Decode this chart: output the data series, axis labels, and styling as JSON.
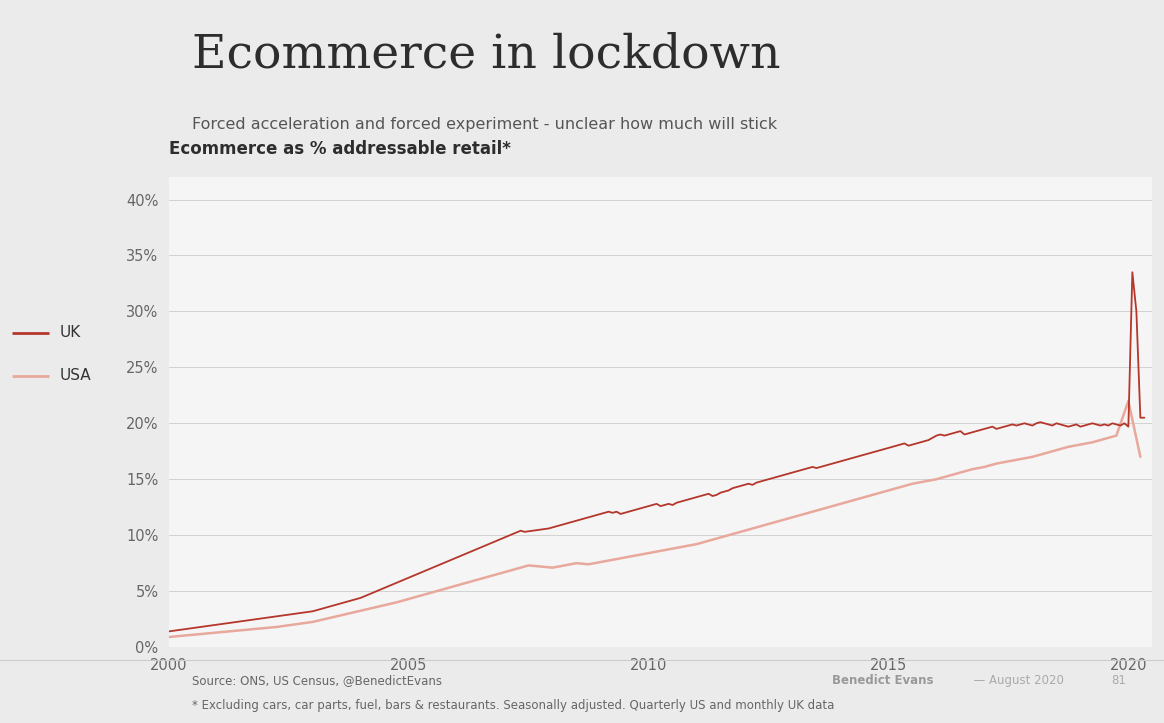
{
  "title": "Ecommerce in lockdown",
  "subtitle": "Forced acceleration and forced experiment - unclear how much will stick",
  "chart_title": "Ecommerce as % addressable retail*",
  "source_line1": "Source: ONS, US Census, @BenedictEvans",
  "source_line2": "* Excluding cars, car parts, fuel, bars & restaurants. Seasonally adjusted. Quarterly US and monthly UK data",
  "author_bold": "Benedict Evans",
  "author_rest": "  — August 2020",
  "page_num": "81",
  "bg_color": "#ebebeb",
  "bg_chart": "#f5f5f5",
  "uk_color": "#b5362a",
  "usa_color": "#e8a89c",
  "legend_uk": "UK",
  "legend_usa": "USA",
  "xmin": 2000,
  "xmax": 2020.5,
  "ymin": 0,
  "ymax": 42,
  "yticks": [
    0,
    5,
    10,
    15,
    20,
    25,
    30,
    35,
    40
  ],
  "xticks": [
    2000,
    2005,
    2010,
    2015,
    2020
  ],
  "uk_x": [
    2000.0,
    2000.083,
    2000.167,
    2000.25,
    2000.333,
    2000.417,
    2000.5,
    2000.583,
    2000.667,
    2000.75,
    2000.833,
    2000.917,
    2001.0,
    2001.083,
    2001.167,
    2001.25,
    2001.333,
    2001.417,
    2001.5,
    2001.583,
    2001.667,
    2001.75,
    2001.833,
    2001.917,
    2002.0,
    2002.083,
    2002.167,
    2002.25,
    2002.333,
    2002.417,
    2002.5,
    2002.583,
    2002.667,
    2002.75,
    2002.833,
    2002.917,
    2003.0,
    2003.083,
    2003.167,
    2003.25,
    2003.333,
    2003.417,
    2003.5,
    2003.583,
    2003.667,
    2003.75,
    2003.833,
    2003.917,
    2004.0,
    2004.083,
    2004.167,
    2004.25,
    2004.333,
    2004.417,
    2004.5,
    2004.583,
    2004.667,
    2004.75,
    2004.833,
    2004.917,
    2005.0,
    2005.083,
    2005.167,
    2005.25,
    2005.333,
    2005.417,
    2005.5,
    2005.583,
    2005.667,
    2005.75,
    2005.833,
    2005.917,
    2006.0,
    2006.083,
    2006.167,
    2006.25,
    2006.333,
    2006.417,
    2006.5,
    2006.583,
    2006.667,
    2006.75,
    2006.833,
    2006.917,
    2007.0,
    2007.083,
    2007.167,
    2007.25,
    2007.333,
    2007.417,
    2007.5,
    2007.583,
    2007.667,
    2007.75,
    2007.833,
    2007.917,
    2008.0,
    2008.083,
    2008.167,
    2008.25,
    2008.333,
    2008.417,
    2008.5,
    2008.583,
    2008.667,
    2008.75,
    2008.833,
    2008.917,
    2009.0,
    2009.083,
    2009.167,
    2009.25,
    2009.333,
    2009.417,
    2009.5,
    2009.583,
    2009.667,
    2009.75,
    2009.833,
    2009.917,
    2010.0,
    2010.083,
    2010.167,
    2010.25,
    2010.333,
    2010.417,
    2010.5,
    2010.583,
    2010.667,
    2010.75,
    2010.833,
    2010.917,
    2011.0,
    2011.083,
    2011.167,
    2011.25,
    2011.333,
    2011.417,
    2011.5,
    2011.583,
    2011.667,
    2011.75,
    2011.833,
    2011.917,
    2012.0,
    2012.083,
    2012.167,
    2012.25,
    2012.333,
    2012.417,
    2012.5,
    2012.583,
    2012.667,
    2012.75,
    2012.833,
    2012.917,
    2013.0,
    2013.083,
    2013.167,
    2013.25,
    2013.333,
    2013.417,
    2013.5,
    2013.583,
    2013.667,
    2013.75,
    2013.833,
    2013.917,
    2014.0,
    2014.083,
    2014.167,
    2014.25,
    2014.333,
    2014.417,
    2014.5,
    2014.583,
    2014.667,
    2014.75,
    2014.833,
    2014.917,
    2015.0,
    2015.083,
    2015.167,
    2015.25,
    2015.333,
    2015.417,
    2015.5,
    2015.583,
    2015.667,
    2015.75,
    2015.833,
    2015.917,
    2016.0,
    2016.083,
    2016.167,
    2016.25,
    2016.333,
    2016.417,
    2016.5,
    2016.583,
    2016.667,
    2016.75,
    2016.833,
    2016.917,
    2017.0,
    2017.083,
    2017.167,
    2017.25,
    2017.333,
    2017.417,
    2017.5,
    2017.583,
    2017.667,
    2017.75,
    2017.833,
    2017.917,
    2018.0,
    2018.083,
    2018.167,
    2018.25,
    2018.333,
    2018.417,
    2018.5,
    2018.583,
    2018.667,
    2018.75,
    2018.833,
    2018.917,
    2019.0,
    2019.083,
    2019.167,
    2019.25,
    2019.333,
    2019.417,
    2019.5,
    2019.583,
    2019.667,
    2019.75,
    2019.833,
    2019.917,
    2020.0,
    2020.083,
    2020.167,
    2020.25,
    2020.333
  ],
  "uk_y": [
    1.4,
    1.45,
    1.5,
    1.55,
    1.6,
    1.65,
    1.7,
    1.75,
    1.8,
    1.85,
    1.9,
    1.95,
    2.0,
    2.05,
    2.1,
    2.15,
    2.2,
    2.25,
    2.3,
    2.35,
    2.4,
    2.45,
    2.5,
    2.55,
    2.6,
    2.65,
    2.7,
    2.75,
    2.8,
    2.85,
    2.9,
    2.95,
    3.0,
    3.05,
    3.1,
    3.15,
    3.2,
    3.3,
    3.4,
    3.5,
    3.6,
    3.7,
    3.8,
    3.9,
    4.0,
    4.1,
    4.2,
    4.3,
    4.4,
    4.55,
    4.7,
    4.85,
    5.0,
    5.15,
    5.3,
    5.45,
    5.6,
    5.75,
    5.9,
    6.05,
    6.2,
    6.35,
    6.5,
    6.65,
    6.8,
    6.95,
    7.1,
    7.25,
    7.4,
    7.55,
    7.7,
    7.85,
    8.0,
    8.15,
    8.3,
    8.45,
    8.6,
    8.75,
    8.9,
    9.05,
    9.2,
    9.35,
    9.5,
    9.65,
    9.8,
    9.95,
    10.1,
    10.25,
    10.4,
    10.3,
    10.35,
    10.4,
    10.45,
    10.5,
    10.55,
    10.6,
    10.7,
    10.8,
    10.9,
    11.0,
    11.1,
    11.2,
    11.3,
    11.4,
    11.5,
    11.6,
    11.7,
    11.8,
    11.9,
    12.0,
    12.1,
    12.0,
    12.1,
    11.9,
    12.0,
    12.1,
    12.2,
    12.3,
    12.4,
    12.5,
    12.6,
    12.7,
    12.8,
    12.6,
    12.7,
    12.8,
    12.7,
    12.9,
    13.0,
    13.1,
    13.2,
    13.3,
    13.4,
    13.5,
    13.6,
    13.7,
    13.5,
    13.6,
    13.8,
    13.9,
    14.0,
    14.2,
    14.3,
    14.4,
    14.5,
    14.6,
    14.5,
    14.7,
    14.8,
    14.9,
    15.0,
    15.1,
    15.2,
    15.3,
    15.4,
    15.5,
    15.6,
    15.7,
    15.8,
    15.9,
    16.0,
    16.1,
    16.0,
    16.1,
    16.2,
    16.3,
    16.4,
    16.5,
    16.6,
    16.7,
    16.8,
    16.9,
    17.0,
    17.1,
    17.2,
    17.3,
    17.4,
    17.5,
    17.6,
    17.7,
    17.8,
    17.9,
    18.0,
    18.1,
    18.2,
    18.0,
    18.1,
    18.2,
    18.3,
    18.4,
    18.5,
    18.7,
    18.9,
    19.0,
    18.9,
    19.0,
    19.1,
    19.2,
    19.3,
    19.0,
    19.1,
    19.2,
    19.3,
    19.4,
    19.5,
    19.6,
    19.7,
    19.5,
    19.6,
    19.7,
    19.8,
    19.9,
    19.8,
    19.9,
    20.0,
    19.9,
    19.8,
    20.0,
    20.1,
    20.0,
    19.9,
    19.8,
    20.0,
    19.9,
    19.8,
    19.7,
    19.8,
    19.9,
    19.7,
    19.8,
    19.9,
    20.0,
    19.9,
    19.8,
    19.9,
    19.8,
    20.0,
    19.9,
    19.8,
    20.0,
    19.7,
    33.5,
    30.0,
    20.5,
    20.5
  ],
  "usa_x": [
    2000.0,
    2000.25,
    2000.5,
    2000.75,
    2001.0,
    2001.25,
    2001.5,
    2001.75,
    2002.0,
    2002.25,
    2002.5,
    2002.75,
    2003.0,
    2003.25,
    2003.5,
    2003.75,
    2004.0,
    2004.25,
    2004.5,
    2004.75,
    2005.0,
    2005.25,
    2005.5,
    2005.75,
    2006.0,
    2006.25,
    2006.5,
    2006.75,
    2007.0,
    2007.25,
    2007.5,
    2007.75,
    2008.0,
    2008.25,
    2008.5,
    2008.75,
    2009.0,
    2009.25,
    2009.5,
    2009.75,
    2010.0,
    2010.25,
    2010.5,
    2010.75,
    2011.0,
    2011.25,
    2011.5,
    2011.75,
    2012.0,
    2012.25,
    2012.5,
    2012.75,
    2013.0,
    2013.25,
    2013.5,
    2013.75,
    2014.0,
    2014.25,
    2014.5,
    2014.75,
    2015.0,
    2015.25,
    2015.5,
    2015.75,
    2016.0,
    2016.25,
    2016.5,
    2016.75,
    2017.0,
    2017.25,
    2017.5,
    2017.75,
    2018.0,
    2018.25,
    2018.5,
    2018.75,
    2019.0,
    2019.25,
    2019.5,
    2019.75,
    2020.0,
    2020.25
  ],
  "usa_y": [
    0.9,
    1.0,
    1.1,
    1.2,
    1.3,
    1.4,
    1.5,
    1.6,
    1.7,
    1.8,
    1.95,
    2.1,
    2.25,
    2.5,
    2.75,
    3.0,
    3.25,
    3.5,
    3.75,
    4.0,
    4.3,
    4.6,
    4.9,
    5.2,
    5.5,
    5.8,
    6.1,
    6.4,
    6.7,
    7.0,
    7.3,
    7.2,
    7.1,
    7.3,
    7.5,
    7.4,
    7.6,
    7.8,
    8.0,
    8.2,
    8.4,
    8.6,
    8.8,
    9.0,
    9.2,
    9.5,
    9.8,
    10.1,
    10.4,
    10.7,
    11.0,
    11.3,
    11.6,
    11.9,
    12.2,
    12.5,
    12.8,
    13.1,
    13.4,
    13.7,
    14.0,
    14.3,
    14.6,
    14.8,
    15.0,
    15.3,
    15.6,
    15.9,
    16.1,
    16.4,
    16.6,
    16.8,
    17.0,
    17.3,
    17.6,
    17.9,
    18.1,
    18.3,
    18.6,
    18.9,
    22.0,
    17.0
  ]
}
